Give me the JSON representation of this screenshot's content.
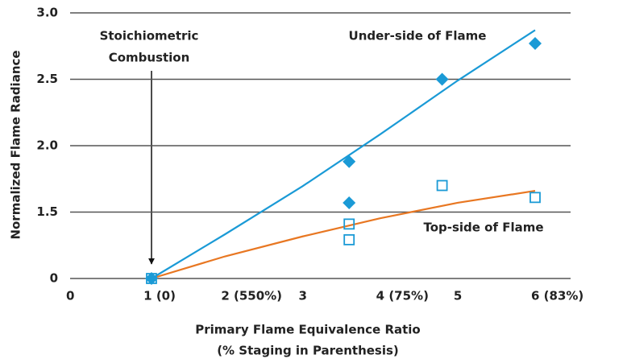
{
  "chart_data": {
    "type": "scatter",
    "x_label": "Primary Flame Equivalence Ratio",
    "x_label_2": "(% Staging in Parenthesis)",
    "y_label": "Normalized Flame Radiance",
    "annotation": [
      "Stoichiometric",
      "Combustion"
    ],
    "xlim": [
      0,
      6
    ],
    "xticks": [
      0,
      {
        "value": 1,
        "label": "1 (0)"
      },
      {
        "value": 2,
        "label": "2 (550%)"
      },
      3,
      {
        "value": 4,
        "label": "4 (75%)"
      },
      5,
      {
        "value": 6,
        "label": "6 (83%)"
      }
    ],
    "ylim": [
      0,
      3.0
    ],
    "yticks": [
      0,
      1.5,
      {
        "value": 2.0,
        "label": "2.0"
      },
      2.5,
      {
        "value": 3.0,
        "label": "3.0"
      }
    ],
    "grid": true,
    "series": [
      {
        "name": "Under-side of Flame",
        "color": "#1a9ad6",
        "marker": "diamond",
        "x": [
          1.05,
          3.6,
          3.6,
          4.8,
          6.0
        ],
        "values": [
          0,
          1.88,
          1.57,
          2.5,
          2.77
        ]
      },
      {
        "name": "Top-side of Flame",
        "color": "#1a9ad6",
        "marker": "square",
        "x": [
          1.05,
          3.6,
          3.6,
          4.8,
          6.0
        ],
        "values": [
          0,
          1.23,
          0.875,
          1.7,
          1.61
        ]
      }
    ],
    "fits": [
      {
        "color": "#1a9ad6",
        "x": [
          1.05,
          2,
          3,
          4,
          5,
          6
        ],
        "values": [
          0,
          1.0,
          1.695,
          2.085,
          2.49,
          2.87
        ]
      },
      {
        "color": "#e87722",
        "x": [
          1.05,
          2,
          3,
          4,
          5,
          6
        ],
        "values": [
          0,
          0.5,
          0.95,
          1.36,
          1.57,
          1.66
        ]
      }
    ]
  }
}
